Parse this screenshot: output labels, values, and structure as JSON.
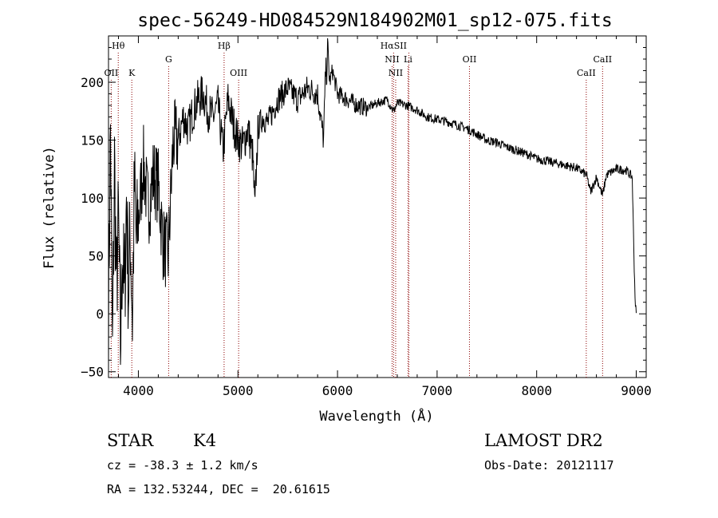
{
  "chart_data": {
    "type": "line",
    "title": "spec-56249-HD084529N184902M01_sp12-075.fits",
    "xlabel": "Wavelength (Å)",
    "ylabel": "Flux (relative)",
    "xlim": [
      3700,
      9100
    ],
    "ylim": [
      -55,
      240
    ],
    "xticks": [
      4000,
      5000,
      6000,
      7000,
      8000,
      9000
    ],
    "yticks": [
      -50,
      0,
      50,
      100,
      150,
      200
    ],
    "grid": false,
    "colors": {
      "spectrum": "#000000",
      "line_markers": "#8b0000"
    },
    "series": [
      {
        "x": [
          3700,
          3720,
          3740,
          3760,
          3780,
          3800,
          3820,
          3840,
          3860,
          3880,
          3900,
          3920,
          3940,
          3960,
          3980,
          4000,
          4050,
          4100,
          4150,
          4200,
          4250,
          4300,
          4350,
          4400,
          4450,
          4500,
          4550,
          4600,
          4650,
          4700,
          4750,
          4800,
          4850,
          4900,
          4950,
          5000,
          5050,
          5100,
          5150,
          5170,
          5200,
          5250,
          5300,
          5400,
          5500,
          5600,
          5700,
          5800,
          5860,
          5880,
          5893,
          5900,
          5920,
          5950,
          6000,
          6100,
          6200,
          6300,
          6400,
          6500,
          6563,
          6600,
          6700,
          6800,
          6900,
          7000,
          7100,
          7200,
          7300,
          7400,
          7500,
          7600,
          7700,
          7800,
          7900,
          8000,
          8100,
          8200,
          8300,
          8400,
          8500,
          8542,
          8600,
          8662,
          8700,
          8800,
          8900,
          8940,
          8960,
          8980,
          8990,
          9000
        ],
        "y": [
          0,
          160,
          -40,
          130,
          20,
          80,
          -30,
          60,
          10,
          100,
          20,
          70,
          -5,
          110,
          60,
          80,
          130,
          90,
          120,
          110,
          60,
          50,
          150,
          150,
          170,
          160,
          175,
          185,
          190,
          175,
          170,
          180,
          140,
          185,
          165,
          150,
          145,
          160,
          135,
          88,
          160,
          170,
          165,
          185,
          195,
          185,
          195,
          190,
          150,
          210,
          208,
          235,
          200,
          210,
          190,
          185,
          180,
          178,
          182,
          185,
          175,
          182,
          180,
          176,
          170,
          168,
          166,
          163,
          160,
          155,
          150,
          148,
          144,
          141,
          138,
          134,
          132,
          130,
          128,
          126,
          120,
          105,
          118,
          102,
          120,
          125,
          124,
          120,
          118,
          40,
          10,
          0
        ]
      }
    ],
    "line_marks": [
      {
        "label": "Hθ",
        "x": 3798,
        "row": "top"
      },
      {
        "label": "OII",
        "x": 3727,
        "row": "bottom"
      },
      {
        "label": "K",
        "x": 3934,
        "row": "bottom"
      },
      {
        "label": "G",
        "x": 4304,
        "row": "middle"
      },
      {
        "label": "Hβ",
        "x": 4861,
        "row": "top"
      },
      {
        "label": "OIII",
        "x": 5007,
        "row": "bottom"
      },
      {
        "label": "HαSII",
        "x": 6563,
        "row": "top"
      },
      {
        "label": "NII",
        "x": 6548,
        "row": "middle"
      },
      {
        "label": "Li",
        "x": 6708,
        "row": "middle"
      },
      {
        "label": "NII",
        "x": 6584,
        "row": "bottom"
      },
      {
        "label": "SII",
        "x": 6717,
        "row": "none"
      },
      {
        "label": "OII",
        "x": 7325,
        "row": "middle"
      },
      {
        "label": "CaII",
        "x": 8498,
        "row": "bottom"
      },
      {
        "label": "CaII",
        "x": 8662,
        "row": "middle"
      }
    ]
  },
  "info": {
    "object_class": "STAR",
    "subclass": "K4",
    "cz": "cz = -38.3 ± 1.2 km/s",
    "coords": "RA = 132.53244, DEC =  20.61615",
    "survey": "LAMOST DR2",
    "obs_date": "Obs-Date: 20121117"
  }
}
